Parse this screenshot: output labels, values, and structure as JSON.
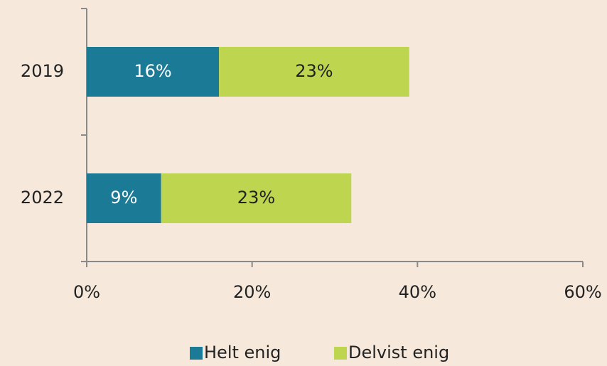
{
  "chart_data": {
    "type": "stacked_barh",
    "categories": [
      "2019",
      "2022"
    ],
    "series": [
      {
        "name": "Helt enig",
        "color": "#1b7b97",
        "values": [
          16,
          9
        ],
        "value_labels": [
          "16%",
          "9%"
        ]
      },
      {
        "name": "Delvist enig",
        "color": "#bdd54f",
        "values": [
          23,
          23
        ],
        "value_labels": [
          "23%",
          "23%"
        ]
      }
    ],
    "xlim": [
      0,
      60
    ],
    "xticks": [
      {
        "value": 0,
        "label": "0%"
      },
      {
        "value": 20,
        "label": "20%"
      },
      {
        "value": 40,
        "label": "40%"
      },
      {
        "value": 60,
        "label": "60%"
      }
    ],
    "legend": "bottom"
  }
}
